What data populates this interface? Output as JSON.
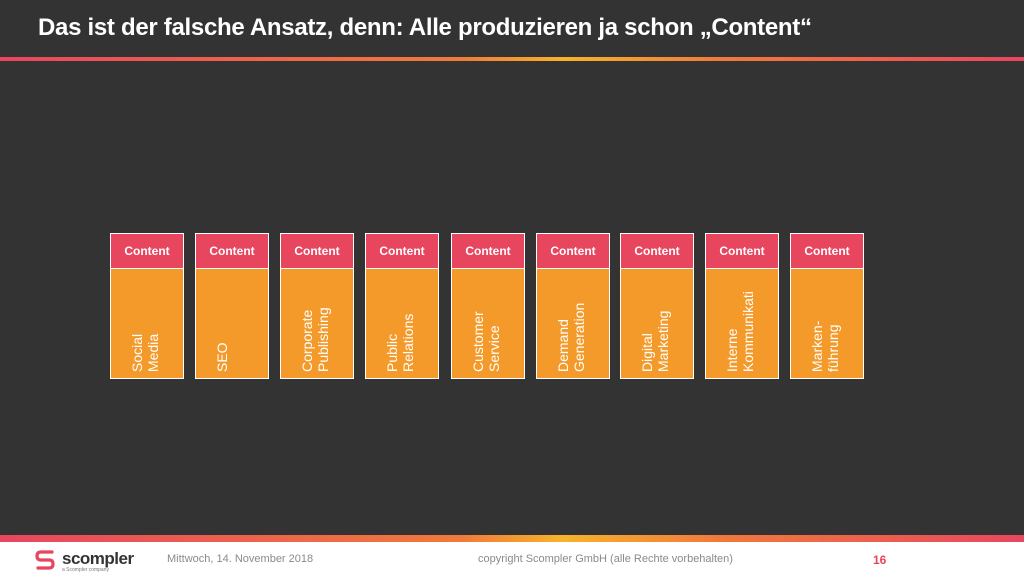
{
  "slide": {
    "title": "Das ist der falsche Ansatz, denn: Alle produzieren ja schon „Content“"
  },
  "cards": [
    {
      "head": "Content",
      "label": "Social\nMedia"
    },
    {
      "head": "Content",
      "label": "SEO"
    },
    {
      "head": "Content",
      "label": "Corporate\nPublishing"
    },
    {
      "head": "Content",
      "label": "Public\nRelations"
    },
    {
      "head": "Content",
      "label": "Customer\nService"
    },
    {
      "head": "Content",
      "label": "Demand\nGeneration"
    },
    {
      "head": "Content",
      "label": "Digital\nMarketing"
    },
    {
      "head": "Content",
      "label": "Interne\nKommunikati"
    },
    {
      "head": "Content",
      "label": "Marken-\nführung"
    }
  ],
  "footer": {
    "logo_text": "scompler",
    "logo_sub": "a Scompler company",
    "date": "Mittwoch, 14. November 2018",
    "copyright": "copyright Scompler GmbH (alle Rechte vorbehalten)",
    "page_number": "16"
  },
  "colors": {
    "background": "#333333",
    "card_head": "#e8455e",
    "card_body": "#f49a2a",
    "accent": "#e8455e"
  }
}
